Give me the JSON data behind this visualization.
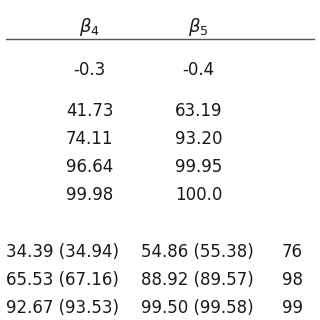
{
  "header": [
    "β₄",
    "β₅"
  ],
  "row1": [
    "-0.3",
    "-0.4"
  ],
  "block1": [
    [
      "41.73",
      "63.19"
    ],
    [
      "74.11",
      "93.20"
    ],
    [
      "96.64",
      "99.95"
    ],
    [
      "99.98",
      "100.0"
    ]
  ],
  "block2": [
    [
      "34.39 (34.94)",
      "54.86 (55.38)",
      "76"
    ],
    [
      "65.53 (67.16)",
      "88.92 (89.57)",
      "98"
    ],
    [
      "92.67 (93.53)",
      "99.50 (99.58)",
      "99"
    ]
  ],
  "bg_color": "#ffffff",
  "text_color": "#1a1a1a",
  "line_color": "#555555",
  "header_fontsize": 13,
  "body_fontsize": 12,
  "fig_width": 3.2,
  "fig_height": 3.2,
  "dpi": 100
}
